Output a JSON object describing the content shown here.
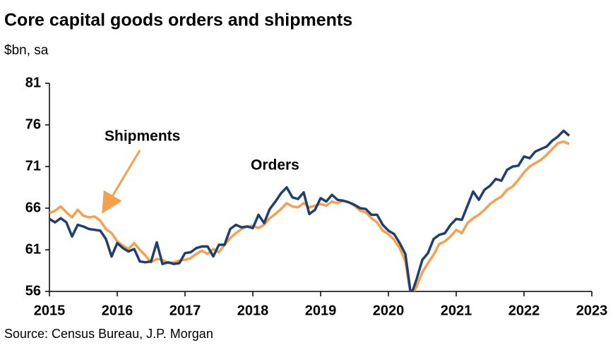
{
  "chart_data": {
    "type": "line",
    "title": "Core capital goods orders and shipments",
    "subtitle": "$bn, sa",
    "source": "Source: Census Bureau, J.P. Morgan",
    "annotations": [
      "Shipments",
      "Orders"
    ],
    "x": [
      2015,
      2015.083,
      2015.167,
      2015.25,
      2015.333,
      2015.417,
      2015.5,
      2015.583,
      2015.667,
      2015.75,
      2015.833,
      2015.917,
      2016,
      2016.083,
      2016.167,
      2016.25,
      2016.333,
      2016.417,
      2016.5,
      2016.583,
      2016.667,
      2016.75,
      2016.833,
      2016.917,
      2017,
      2017.083,
      2017.167,
      2017.25,
      2017.333,
      2017.417,
      2017.5,
      2017.583,
      2017.667,
      2017.75,
      2017.833,
      2017.917,
      2018,
      2018.083,
      2018.167,
      2018.25,
      2018.333,
      2018.417,
      2018.5,
      2018.583,
      2018.667,
      2018.75,
      2018.833,
      2018.917,
      2019,
      2019.083,
      2019.167,
      2019.25,
      2019.333,
      2019.417,
      2019.5,
      2019.583,
      2019.667,
      2019.75,
      2019.833,
      2019.917,
      2020,
      2020.083,
      2020.167,
      2020.25,
      2020.333,
      2020.417,
      2020.5,
      2020.583,
      2020.667,
      2020.75,
      2020.833,
      2020.917,
      2021,
      2021.083,
      2021.167,
      2021.25,
      2021.333,
      2021.417,
      2021.5,
      2021.583,
      2021.667,
      2021.75,
      2021.833,
      2021.917,
      2022,
      2022.083,
      2022.167,
      2022.25,
      2022.333,
      2022.417,
      2022.5,
      2022.583,
      2022.667
    ],
    "series": [
      {
        "name": "Orders",
        "color": "#1f3f6e",
        "values": [
          64.7,
          64.3,
          64.8,
          64.3,
          62.6,
          64.0,
          63.8,
          63.5,
          63.4,
          63.3,
          62.3,
          60.2,
          61.8,
          61.2,
          60.8,
          61.1,
          59.6,
          59.5,
          59.6,
          61.9,
          59.3,
          59.5,
          59.3,
          59.4,
          60.6,
          60.7,
          61.2,
          61.4,
          61.4,
          60.2,
          61.6,
          61.6,
          63.5,
          64.0,
          63.7,
          63.8,
          63.6,
          65.2,
          64.2,
          65.9,
          66.8,
          67.8,
          68.5,
          67.3,
          67.1,
          67.9,
          65.3,
          65.8,
          67.2,
          66.8,
          67.6,
          67.0,
          66.9,
          66.7,
          66.4,
          66.0,
          65.9,
          65.2,
          65.2,
          64.0,
          63.3,
          62.9,
          61.8,
          60.5,
          55.5,
          57.5,
          59.8,
          60.6,
          62.3,
          62.8,
          63.0,
          64.0,
          64.7,
          64.6,
          66.3,
          68.0,
          67.0,
          68.2,
          68.7,
          69.5,
          69.3,
          70.6,
          71.0,
          71.1,
          72.2,
          72.0,
          72.8,
          73.1,
          73.4,
          74.1,
          74.6,
          75.3,
          74.7
        ]
      },
      {
        "name": "Shipments",
        "color": "#f4a04e",
        "values": [
          65.4,
          65.7,
          66.2,
          65.5,
          64.9,
          65.8,
          65.1,
          64.9,
          65.0,
          64.5,
          63.5,
          63.0,
          62.0,
          61.5,
          61.1,
          61.8,
          61.0,
          60.3,
          59.5,
          59.9,
          59.8,
          59.4,
          59.5,
          59.7,
          59.8,
          60.0,
          60.5,
          60.9,
          60.5,
          61.1,
          60.7,
          61.6,
          62.4,
          63.0,
          63.5,
          63.8,
          63.9,
          63.6,
          64.0,
          64.8,
          65.3,
          65.9,
          66.6,
          66.2,
          66.1,
          66.6,
          66.1,
          66.3,
          66.5,
          66.3,
          66.8,
          66.6,
          66.9,
          66.7,
          66.3,
          65.7,
          65.5,
          64.8,
          64.3,
          63.3,
          62.9,
          62.2,
          61.2,
          59.6,
          55.3,
          56.6,
          58.3,
          59.4,
          60.4,
          61.7,
          62.0,
          62.6,
          63.4,
          63.0,
          64.2,
          64.8,
          65.2,
          65.8,
          66.5,
          67.0,
          67.4,
          68.2,
          68.6,
          69.4,
          70.3,
          71.0,
          71.4,
          71.8,
          72.4,
          73.1,
          73.8,
          74.0,
          73.7
        ]
      }
    ],
    "xlim": [
      2015,
      2023
    ],
    "xticks": [
      2015,
      2016,
      2017,
      2018,
      2019,
      2020,
      2021,
      2022,
      2023
    ],
    "ylim": [
      56,
      81
    ],
    "yticks": [
      56,
      61,
      66,
      71,
      76,
      81
    ],
    "grid": false
  }
}
